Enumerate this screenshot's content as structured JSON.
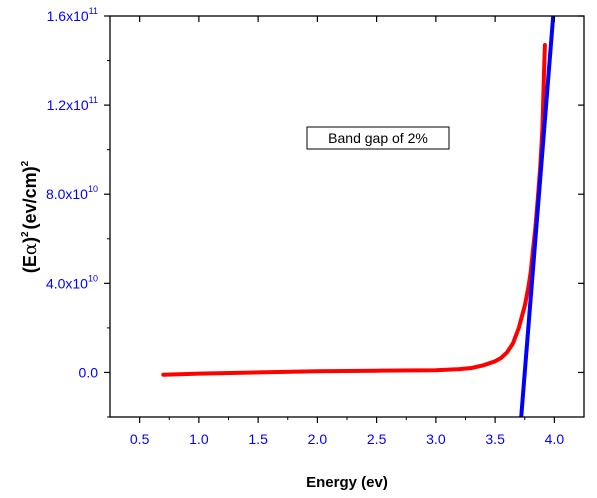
{
  "chart_data": {
    "type": "line",
    "xlabel": "Energy (ev)",
    "ylabel_parts": {
      "open": "(E",
      "alpha": "α",
      "close": ")",
      "exp1": "2",
      "unit": "(ev/cm)",
      "exp2": "2"
    },
    "xlim": [
      0.25,
      4.25
    ],
    "ylim": [
      -20000000000,
      160000000000
    ],
    "x_ticks": [
      0.5,
      1.0,
      1.5,
      2.0,
      2.5,
      3.0,
      3.5,
      4.0
    ],
    "x_tick_labels": [
      "0.5",
      "1.0",
      "1.5",
      "2.0",
      "2.5",
      "3.0",
      "3.5",
      "4.0"
    ],
    "y_ticks": [
      0,
      40000000000,
      80000000000,
      120000000000,
      160000000000
    ],
    "y_tick_labels": [
      {
        "mantissa": "0.0",
        "exp": ""
      },
      {
        "mantissa": "4.0x10",
        "exp": "10"
      },
      {
        "mantissa": "8.0x10",
        "exp": "10"
      },
      {
        "mantissa": "1.2x10",
        "exp": "11"
      },
      {
        "mantissa": "1.6x10",
        "exp": "11"
      }
    ],
    "annotation": "Band gap of 2%",
    "grid": false,
    "colors": {
      "data": "#ff0000",
      "fit": "#0000ff",
      "tick_labels": "#0000ff",
      "axis": "#000000"
    },
    "series": [
      {
        "x": [
          0.7,
          1.0,
          1.5,
          2.0,
          2.5,
          3.0,
          3.2,
          3.3,
          3.4,
          3.5,
          3.55,
          3.6,
          3.65,
          3.7,
          3.75,
          3.78,
          3.8,
          3.82,
          3.84,
          3.86,
          3.88,
          3.9,
          3.91,
          3.92
        ],
        "y": [
          -1000000000,
          -500000000,
          0,
          500000000,
          800000000,
          1000000000,
          1500000000,
          2000000000,
          3200000000,
          5000000000,
          6500000000,
          9000000000,
          13000000000,
          20000000000,
          30000000000,
          38000000000,
          45000000000,
          55000000000,
          65000000000,
          78000000000,
          92000000000,
          110000000000,
          130000000000,
          147000000000
        ]
      },
      {
        "x": [
          3.72,
          3.99
        ],
        "y": [
          -20000000000,
          160000000000
        ]
      }
    ]
  }
}
